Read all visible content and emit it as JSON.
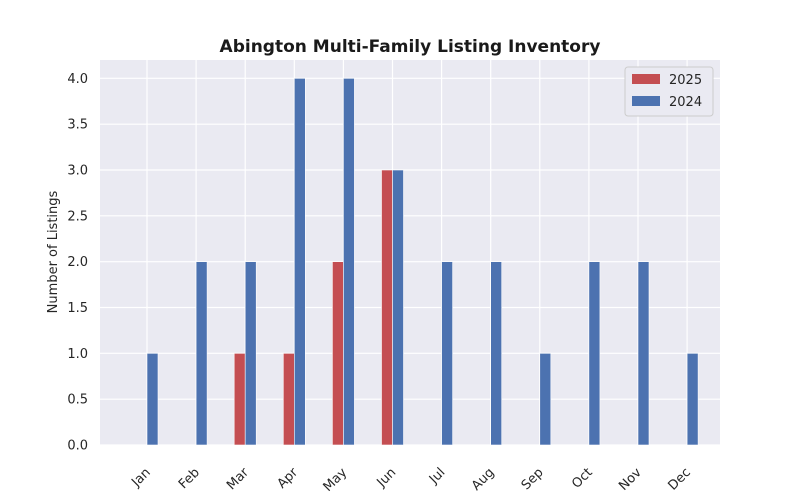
{
  "chart_data": {
    "type": "bar",
    "title": "Abington Multi-Family Listing Inventory",
    "xlabel": "",
    "ylabel": "Number of Listings",
    "categories": [
      "Jan",
      "Feb",
      "Mar",
      "Apr",
      "May",
      "Jun",
      "Jul",
      "Aug",
      "Sep",
      "Oct",
      "Nov",
      "Dec"
    ],
    "series": [
      {
        "name": "2025",
        "color": "#c44e52",
        "values": [
          0,
          0,
          1,
          1,
          2,
          3,
          0,
          0,
          0,
          0,
          0,
          0
        ]
      },
      {
        "name": "2024",
        "color": "#4c72b0",
        "values": [
          1,
          2,
          2,
          4,
          4,
          3,
          2,
          2,
          1,
          2,
          2,
          1
        ]
      }
    ],
    "ylim": [
      0,
      4.2
    ],
    "yticks": [
      "0.0",
      "0.5",
      "1.0",
      "1.5",
      "2.0",
      "2.5",
      "3.0",
      "3.5",
      "4.0"
    ],
    "grid": true,
    "legend_position": "top-right",
    "background": "#eaeaf2"
  }
}
